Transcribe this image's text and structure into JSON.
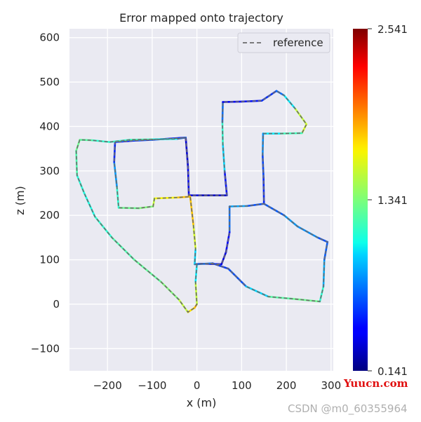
{
  "chart_data": {
    "type": "line",
    "title": "Error mapped onto trajectory",
    "xlabel": "x (m)",
    "ylabel": "z (m)",
    "xlim": [
      -285,
      305
    ],
    "ylim": [
      -150,
      620
    ],
    "xticks": [
      -200,
      -100,
      0,
      100,
      200,
      300
    ],
    "yticks": [
      -100,
      0,
      100,
      200,
      300,
      400,
      500,
      600
    ],
    "xtick_labels": [
      "−200",
      "−100",
      "0",
      "100",
      "200",
      "300"
    ],
    "ytick_labels": [
      "−100",
      "0",
      "100",
      "200",
      "300",
      "400",
      "500",
      "600"
    ],
    "grid": true,
    "legend": {
      "position": "top-right",
      "entries": [
        {
          "name": "reference",
          "style": "dashed",
          "color": "#6b6b6b"
        }
      ]
    },
    "colorbar": {
      "colormap": "jet",
      "min": 0.141,
      "max": 2.541,
      "ticks": [
        0.141,
        1.341,
        2.541
      ],
      "tick_labels": [
        "0.141",
        "1.341",
        "2.541"
      ]
    },
    "series": [
      {
        "name": "reference",
        "points": [
          [
            -25,
            375
          ],
          [
            -20,
            310
          ],
          [
            -18,
            245
          ],
          [
            10,
            245
          ],
          [
            40,
            245
          ],
          [
            67,
            245
          ],
          [
            62,
            300
          ],
          [
            58,
            360
          ],
          [
            57,
            410
          ],
          [
            58,
            455
          ],
          [
            100,
            456
          ],
          [
            145,
            458
          ],
          [
            178,
            480
          ],
          [
            195,
            470
          ],
          [
            220,
            440
          ],
          [
            245,
            405
          ],
          [
            235,
            385
          ],
          [
            185,
            384
          ],
          [
            148,
            384
          ],
          [
            147,
            335
          ],
          [
            149,
            285
          ],
          [
            150,
            226
          ],
          [
            112,
            221
          ],
          [
            73,
            220
          ],
          [
            73,
            162
          ],
          [
            65,
            117
          ],
          [
            55,
            90
          ],
          [
            10,
            91
          ],
          [
            -5,
            90
          ],
          [
            -3,
            125
          ],
          [
            -8,
            180
          ],
          [
            -15,
            242
          ],
          [
            -45,
            240
          ],
          [
            -95,
            238
          ],
          [
            -98,
            220
          ],
          [
            -130,
            216
          ],
          [
            -175,
            217
          ],
          [
            -179,
            265
          ],
          [
            -185,
            320
          ],
          [
            -183,
            365
          ],
          [
            -142,
            368
          ],
          [
            -100,
            370
          ],
          [
            -70,
            372
          ],
          [
            -25,
            375
          ],
          [
            -45,
            372
          ],
          [
            -100,
            371
          ],
          [
            -150,
            370
          ],
          [
            -195,
            365
          ],
          [
            -235,
            369
          ],
          [
            -262,
            370
          ],
          [
            -270,
            345
          ],
          [
            -268,
            290
          ],
          [
            -252,
            250
          ],
          [
            -228,
            197
          ],
          [
            -190,
            150
          ],
          [
            -140,
            100
          ],
          [
            -80,
            50
          ],
          [
            -40,
            10
          ],
          [
            -20,
            -18
          ],
          [
            -5,
            -8
          ],
          [
            0,
            0
          ],
          [
            -3,
            50
          ],
          [
            0,
            90
          ],
          [
            35,
            92
          ],
          [
            70,
            80
          ],
          [
            110,
            40
          ],
          [
            160,
            17
          ],
          [
            215,
            12
          ],
          [
            275,
            6
          ],
          [
            283,
            40
          ],
          [
            285,
            100
          ],
          [
            292,
            140
          ],
          [
            270,
            150
          ],
          [
            225,
            175
          ],
          [
            195,
            200
          ],
          [
            150,
            226
          ]
        ],
        "errors": [
          0.35,
          0.35,
          0.45,
          0.3,
          0.3,
          0.35,
          0.6,
          1.3,
          1.0,
          0.4,
          0.45,
          0.5,
          0.6,
          0.8,
          1.2,
          1.8,
          1.3,
          1.1,
          0.9,
          0.65,
          0.55,
          0.5,
          0.75,
          0.9,
          0.5,
          0.4,
          0.35,
          0.45,
          0.5,
          1.4,
          1.7,
          1.85,
          1.7,
          1.6,
          1.4,
          1.3,
          1.3,
          1.0,
          0.6,
          0.45,
          0.5,
          0.55,
          0.5,
          0.45,
          0.9,
          1.2,
          1.2,
          1.1,
          1.2,
          1.3,
          1.3,
          1.15,
          1.1,
          1.1,
          1.2,
          1.25,
          1.3,
          1.4,
          1.6,
          1.8,
          1.8,
          1.2,
          0.8,
          0.6,
          0.55,
          0.7,
          1.2,
          1.3,
          1.3,
          1.0,
          0.7,
          0.6,
          0.65,
          0.9,
          0.7,
          0.6
        ]
      }
    ]
  },
  "watermarks": {
    "red": "Yuucn.com",
    "gray": "CSDN @m0_60355964"
  }
}
